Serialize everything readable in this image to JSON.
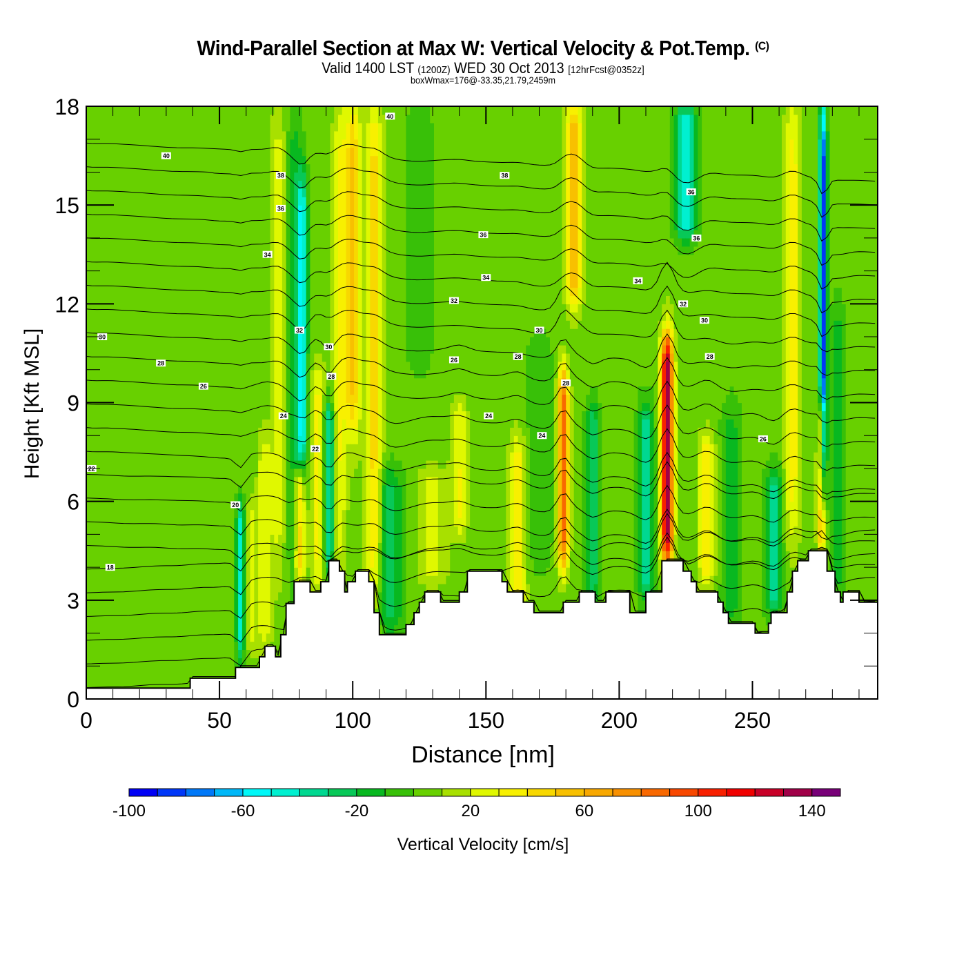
{
  "header": {
    "title": "Wind-Parallel Section at Max W: Vertical Velocity & Pot.Temp.",
    "copyright": "(C)",
    "valid_prefix": "Valid 1400 LST",
    "valid_utc": "(1200Z)",
    "valid_date": "WED 30 Oct 2013",
    "forecast": "[12hrFcst@0352z]",
    "box_info": "boxWmax=176@-33.35,21.79,2459m"
  },
  "chart_data": {
    "type": "heatmap",
    "title": "Wind-Parallel Section at Max W: Vertical Velocity & Pot.Temp.",
    "xlabel": "Distance [nm]",
    "ylabel": "Height [Kft MSL]",
    "xlim": [
      0,
      297
    ],
    "ylim": [
      0,
      18
    ],
    "x_ticks": [
      0,
      50,
      100,
      150,
      200,
      250
    ],
    "x_minor_step": 10,
    "y_ticks": [
      0,
      3,
      6,
      9,
      12,
      15,
      18
    ],
    "y_minor_step": 1,
    "colorbar": {
      "label": "Vertical Velocity [cm/s]",
      "min": -100,
      "max": 150,
      "step": 10,
      "tick_labels": [
        -100,
        -60,
        -20,
        20,
        60,
        100,
        140
      ],
      "colors": [
        "#0000f5",
        "#0037f8",
        "#0078f8",
        "#00b8f8",
        "#00f8f8",
        "#00f0d0",
        "#00d890",
        "#08c858",
        "#08b820",
        "#38c008",
        "#68d000",
        "#a8e000",
        "#e0f800",
        "#f8f000",
        "#f8d800",
        "#f8c000",
        "#f8a800",
        "#f89000",
        "#f86800",
        "#f84800",
        "#f82000",
        "#f00000",
        "#c80028",
        "#a00048",
        "#780078"
      ]
    },
    "background_w": 5,
    "w_features": [
      {
        "x": 2,
        "width": 3,
        "ybot": 8,
        "ytop": 16,
        "w": -5
      },
      {
        "x": 30,
        "width": 6,
        "ybot": 9,
        "ytop": 17,
        "w": -5
      },
      {
        "x": 15,
        "width": 5,
        "ybot": 0.4,
        "ytop": 5,
        "w": -5
      },
      {
        "x": 35,
        "width": 4,
        "ybot": 0.4,
        "ytop": 3.5,
        "w": -5
      },
      {
        "x": 50,
        "width": 4,
        "ybot": 1,
        "ytop": 14,
        "w": -5
      },
      {
        "x": 58,
        "width": 1.6,
        "ybot": 1.3,
        "ytop": 6,
        "w": -50
      },
      {
        "x": 62,
        "width": 2,
        "ybot": 1.5,
        "ytop": 6,
        "w": 20
      },
      {
        "x": 67,
        "width": 2.5,
        "ybot": 1.5,
        "ytop": 8,
        "w": 25
      },
      {
        "x": 72,
        "width": 2.5,
        "ybot": 4,
        "ytop": 18,
        "w": 20
      },
      {
        "x": 78,
        "width": 2.5,
        "ybot": 3.5,
        "ytop": 18,
        "w": -20
      },
      {
        "x": 80,
        "width": 2,
        "ybot": 3.6,
        "ytop": 7,
        "w": 45
      },
      {
        "x": 81,
        "width": 2,
        "ybot": 7,
        "ytop": 16,
        "w": -55
      },
      {
        "x": 87,
        "width": 2.5,
        "ybot": 3.5,
        "ytop": 10,
        "w": 30
      },
      {
        "x": 91,
        "width": 2,
        "ybot": 4,
        "ytop": 9,
        "w": -50
      },
      {
        "x": 95,
        "width": 2.5,
        "ybot": 4,
        "ytop": 18,
        "w": 25
      },
      {
        "x": 100,
        "width": 3,
        "ybot": 8,
        "ytop": 18,
        "w": 45
      },
      {
        "x": 108,
        "width": 3,
        "ybot": 3,
        "ytop": 18,
        "w": 40
      },
      {
        "x": 114,
        "width": 5,
        "ybot": 2,
        "ytop": 7,
        "w": -30
      },
      {
        "x": 125,
        "width": 5,
        "ybot": 10,
        "ytop": 18,
        "w": -15
      },
      {
        "x": 130,
        "width": 5,
        "ybot": 3.5,
        "ytop": 7,
        "w": 20
      },
      {
        "x": 140,
        "width": 3,
        "ybot": 5,
        "ytop": 9,
        "w": 25
      },
      {
        "x": 162,
        "width": 3,
        "ybot": 2.5,
        "ytop": 8,
        "w": 30
      },
      {
        "x": 170,
        "width": 5,
        "ybot": 4,
        "ytop": 11,
        "w": -15
      },
      {
        "x": 179,
        "width": 2,
        "ybot": 4,
        "ytop": 10,
        "w": 80
      },
      {
        "x": 183,
        "width": 3,
        "ybot": 12,
        "ytop": 18,
        "w": 55
      },
      {
        "x": 190,
        "width": 2.5,
        "ybot": 3,
        "ytop": 9,
        "w": -35
      },
      {
        "x": 210,
        "width": 3,
        "ybot": 3,
        "ytop": 9,
        "w": -40
      },
      {
        "x": 218,
        "width": 2.2,
        "ybot": 4.2,
        "ytop": 11,
        "w": 135
      },
      {
        "x": 225,
        "width": 4,
        "ybot": 14,
        "ytop": 18,
        "w": -55
      },
      {
        "x": 233,
        "width": 3,
        "ybot": 3.5,
        "ytop": 8,
        "w": 35
      },
      {
        "x": 242,
        "width": 4,
        "ybot": 2,
        "ytop": 9,
        "w": -20
      },
      {
        "x": 258,
        "width": 3,
        "ybot": 2.5,
        "ytop": 7,
        "w": -40
      },
      {
        "x": 265,
        "width": 3,
        "ybot": 5,
        "ytop": 18,
        "w": 30
      },
      {
        "x": 276,
        "width": 1.5,
        "ybot": 4.5,
        "ytop": 9,
        "w": 65
      },
      {
        "x": 276.5,
        "width": 1.4,
        "ybot": 6,
        "ytop": 18,
        "w": -90
      },
      {
        "x": 282,
        "width": 3,
        "ybot": 3,
        "ytop": 12,
        "w": -20
      }
    ],
    "terrain": {
      "x": [
        0,
        39,
        39,
        56,
        56,
        65,
        65,
        67,
        67,
        71,
        71,
        73,
        73,
        75,
        75,
        78,
        78,
        84,
        84,
        88,
        88,
        91,
        91,
        95,
        95,
        97,
        97,
        98,
        98,
        101,
        101,
        106,
        106,
        108,
        108,
        110,
        110,
        120,
        120,
        123,
        123,
        125,
        125,
        127,
        127,
        133,
        133,
        140,
        140,
        143,
        143,
        156,
        156,
        158,
        158,
        164,
        164,
        168,
        168,
        179,
        179,
        185,
        185,
        191,
        191,
        195,
        195,
        204,
        204,
        210,
        210,
        216,
        216,
        224,
        224,
        227,
        227,
        229,
        229,
        237,
        237,
        239,
        239,
        241,
        241,
        251,
        251,
        256,
        256,
        257,
        257,
        263,
        263,
        265,
        265,
        267,
        267,
        271,
        271,
        278,
        278,
        281,
        281,
        283,
        283,
        284,
        284,
        290,
        290,
        297
      ],
      "height": [
        0.33,
        0.33,
        0.63,
        0.63,
        0.96,
        0.96,
        1.28,
        1.28,
        1.6,
        1.6,
        1.28,
        1.28,
        1.95,
        1.95,
        2.9,
        2.9,
        3.56,
        3.56,
        3.25,
        3.25,
        3.56,
        3.56,
        4.2,
        4.2,
        3.88,
        3.88,
        3.25,
        3.25,
        3.56,
        3.56,
        3.88,
        3.88,
        3.56,
        3.56,
        2.62,
        2.62,
        1.95,
        1.95,
        2.26,
        2.26,
        2.62,
        2.62,
        2.94,
        2.94,
        3.25,
        3.25,
        2.94,
        2.94,
        3.25,
        3.25,
        3.88,
        3.88,
        3.56,
        3.56,
        3.25,
        3.25,
        2.94,
        2.94,
        2.62,
        2.62,
        2.94,
        2.94,
        3.25,
        3.25,
        2.94,
        2.94,
        3.25,
        3.25,
        2.62,
        2.62,
        3.25,
        3.25,
        4.2,
        4.2,
        3.88,
        3.88,
        3.56,
        3.56,
        3.25,
        3.25,
        2.94,
        2.94,
        2.62,
        2.62,
        2.3,
        2.3,
        2.0,
        2.0,
        2.3,
        2.3,
        2.62,
        2.62,
        3.25,
        3.25,
        3.88,
        3.88,
        4.2,
        4.2,
        4.5,
        4.5,
        3.88,
        3.88,
        3.25,
        3.25,
        2.94,
        2.94,
        3.25,
        3.25,
        2.94,
        2.94
      ]
    },
    "isentropes": {
      "levels": [
        18,
        19,
        20,
        21,
        22,
        23,
        24,
        25,
        26,
        27,
        28,
        29,
        30,
        31,
        32,
        33,
        34,
        35,
        36,
        37,
        38,
        39,
        40,
        41
      ],
      "labeled": [
        {
          "text": "40",
          "x": 30,
          "y": 16.5
        },
        {
          "text": "40",
          "x": 114,
          "y": 17.7
        },
        {
          "text": "38",
          "x": 73,
          "y": 15.9
        },
        {
          "text": "36",
          "x": 73,
          "y": 14.9
        },
        {
          "text": "34",
          "x": 68,
          "y": 13.5
        },
        {
          "text": "32",
          "x": 80,
          "y": 11.2
        },
        {
          "text": "30",
          "x": 6,
          "y": 11.0
        },
        {
          "text": "30",
          "x": 91,
          "y": 10.7
        },
        {
          "text": "28",
          "x": 28,
          "y": 10.2
        },
        {
          "text": "28",
          "x": 92,
          "y": 9.8
        },
        {
          "text": "26",
          "x": 44,
          "y": 9.5
        },
        {
          "text": "24",
          "x": 74,
          "y": 8.6
        },
        {
          "text": "22",
          "x": 86,
          "y": 7.6
        },
        {
          "text": "22",
          "x": 2,
          "y": 7.0
        },
        {
          "text": "20",
          "x": 56,
          "y": 5.9
        },
        {
          "text": "18",
          "x": 9,
          "y": 4.0
        },
        {
          "text": "36",
          "x": 149,
          "y": 14.1
        },
        {
          "text": "38",
          "x": 157,
          "y": 15.9
        },
        {
          "text": "34",
          "x": 150,
          "y": 12.8
        },
        {
          "text": "32",
          "x": 138,
          "y": 12.1
        },
        {
          "text": "30",
          "x": 170,
          "y": 11.2
        },
        {
          "text": "28",
          "x": 162,
          "y": 10.4
        },
        {
          "text": "26",
          "x": 138,
          "y": 10.3
        },
        {
          "text": "24",
          "x": 151,
          "y": 8.6
        },
        {
          "text": "24",
          "x": 171,
          "y": 8.0
        },
        {
          "text": "28",
          "x": 180,
          "y": 9.6
        },
        {
          "text": "34",
          "x": 207,
          "y": 12.7
        },
        {
          "text": "36",
          "x": 227,
          "y": 15.4
        },
        {
          "text": "36",
          "x": 229,
          "y": 14.0
        },
        {
          "text": "32",
          "x": 224,
          "y": 12.0
        },
        {
          "text": "30",
          "x": 232,
          "y": 11.5
        },
        {
          "text": "28",
          "x": 234,
          "y": 10.4
        },
        {
          "text": "26",
          "x": 254,
          "y": 7.9
        }
      ]
    }
  }
}
